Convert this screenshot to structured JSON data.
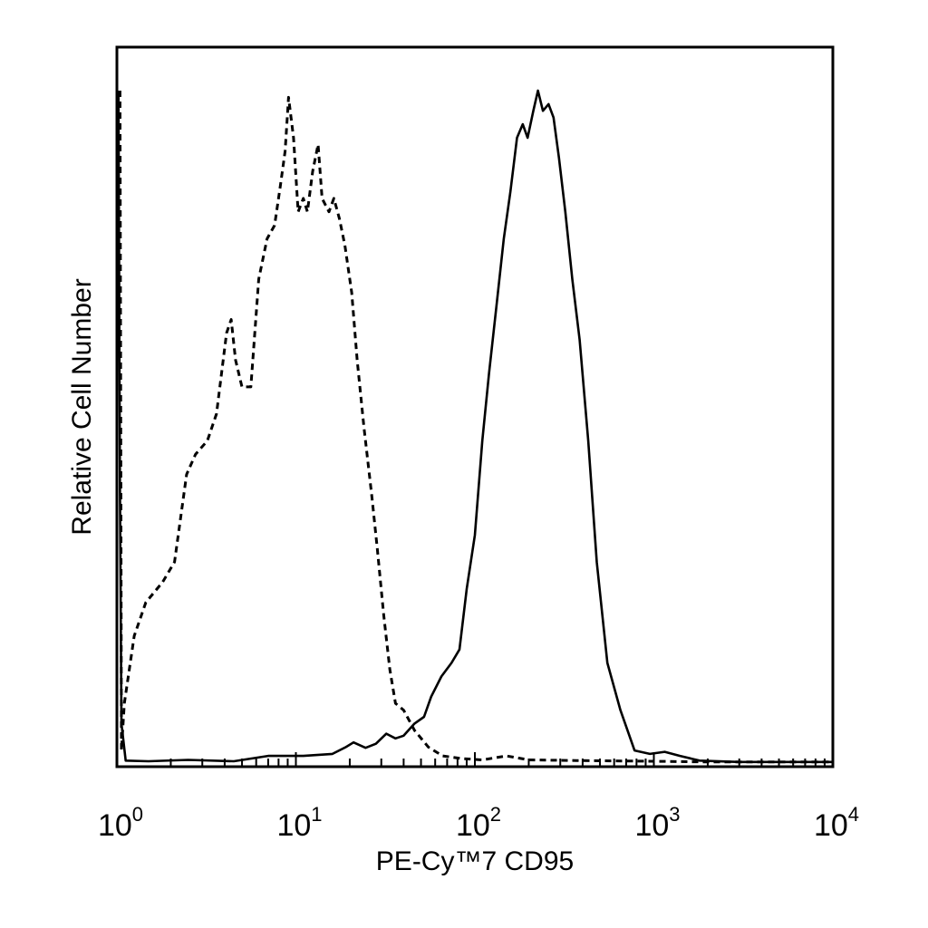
{
  "chart_data": {
    "type": "line",
    "title": "",
    "xlabel": "PE-Cy™7 CD95",
    "ylabel": "Relative Cell Number",
    "x_scale": "log",
    "xlim": [
      1,
      10000
    ],
    "ylim": [
      0,
      1
    ],
    "grid": false,
    "legend": "none",
    "x_ticks": [
      {
        "value": 1,
        "base": "10",
        "exp": "0"
      },
      {
        "value": 10,
        "base": "10",
        "exp": "1"
      },
      {
        "value": 100,
        "base": "10",
        "exp": "2"
      },
      {
        "value": 1000,
        "base": "10",
        "exp": "3"
      },
      {
        "value": 10000,
        "base": "10",
        "exp": "4"
      }
    ],
    "series": [
      {
        "style": "dashed",
        "color": "#000000",
        "points": [
          [
            1.04,
            1.0
          ],
          [
            1.05,
            0.55
          ],
          [
            1.06,
            0.02
          ],
          [
            1.1,
            0.09
          ],
          [
            1.25,
            0.19
          ],
          [
            1.45,
            0.24
          ],
          [
            1.8,
            0.27
          ],
          [
            2.1,
            0.3
          ],
          [
            2.45,
            0.43
          ],
          [
            2.75,
            0.46
          ],
          [
            3.2,
            0.48
          ],
          [
            3.6,
            0.52
          ],
          [
            4.1,
            0.64
          ],
          [
            4.35,
            0.66
          ],
          [
            4.6,
            0.6
          ],
          [
            5.0,
            0.56
          ],
          [
            5.6,
            0.56
          ],
          [
            6.2,
            0.72
          ],
          [
            6.9,
            0.78
          ],
          [
            7.6,
            0.8
          ],
          [
            8.2,
            0.86
          ],
          [
            8.7,
            0.91
          ],
          [
            9.1,
            0.99
          ],
          [
            9.7,
            0.93
          ],
          [
            10.3,
            0.82
          ],
          [
            11.0,
            0.84
          ],
          [
            11.6,
            0.82
          ],
          [
            12.4,
            0.88
          ],
          [
            13.3,
            0.92
          ],
          [
            14.0,
            0.84
          ],
          [
            15.3,
            0.82
          ],
          [
            16.3,
            0.84
          ],
          [
            17.5,
            0.81
          ],
          [
            18.8,
            0.77
          ],
          [
            20.5,
            0.7
          ],
          [
            22.0,
            0.6
          ],
          [
            24.0,
            0.5
          ],
          [
            26.5,
            0.4
          ],
          [
            28.5,
            0.32
          ],
          [
            31.0,
            0.22
          ],
          [
            33.5,
            0.14
          ],
          [
            36.0,
            0.09
          ],
          [
            40.0,
            0.08
          ],
          [
            46.0,
            0.05
          ],
          [
            55.0,
            0.025
          ],
          [
            66.0,
            0.012
          ],
          [
            85.0,
            0.008
          ],
          [
            110.0,
            0.006
          ],
          [
            150.0,
            0.012
          ],
          [
            200.0,
            0.006
          ],
          [
            400.0,
            0.005
          ],
          [
            1000.0,
            0.004
          ],
          [
            2000.0,
            0.003
          ],
          [
            5000.0,
            0.003
          ],
          [
            10000.0,
            0.003
          ]
        ]
      },
      {
        "style": "solid",
        "color": "#000000",
        "points": [
          [
            1.02,
            1.0
          ],
          [
            1.04,
            0.4
          ],
          [
            1.06,
            0.06
          ],
          [
            1.12,
            0.005
          ],
          [
            1.5,
            0.004
          ],
          [
            2.5,
            0.006
          ],
          [
            4.5,
            0.004
          ],
          [
            7.0,
            0.012
          ],
          [
            11.0,
            0.012
          ],
          [
            16.0,
            0.015
          ],
          [
            19.0,
            0.025
          ],
          [
            21.0,
            0.032
          ],
          [
            24.5,
            0.024
          ],
          [
            28.0,
            0.03
          ],
          [
            32.0,
            0.045
          ],
          [
            36.0,
            0.038
          ],
          [
            40.0,
            0.042
          ],
          [
            46.0,
            0.06
          ],
          [
            52.0,
            0.07
          ],
          [
            57.0,
            0.1
          ],
          [
            65.0,
            0.13
          ],
          [
            74.0,
            0.15
          ],
          [
            82.0,
            0.17
          ],
          [
            90.0,
            0.26
          ],
          [
            100.0,
            0.34
          ],
          [
            110.0,
            0.48
          ],
          [
            120.0,
            0.58
          ],
          [
            132.0,
            0.68
          ],
          [
            145.0,
            0.78
          ],
          [
            158.0,
            0.85
          ],
          [
            172.0,
            0.93
          ],
          [
            185.0,
            0.95
          ],
          [
            197.0,
            0.93
          ],
          [
            212.0,
            0.97
          ],
          [
            225.0,
            1.0
          ],
          [
            240.0,
            0.97
          ],
          [
            258.0,
            0.98
          ],
          [
            275.0,
            0.96
          ],
          [
            295.0,
            0.9
          ],
          [
            320.0,
            0.82
          ],
          [
            350.0,
            0.72
          ],
          [
            385.0,
            0.63
          ],
          [
            430.0,
            0.48
          ],
          [
            480.0,
            0.3
          ],
          [
            550.0,
            0.15
          ],
          [
            650.0,
            0.08
          ],
          [
            780.0,
            0.02
          ],
          [
            950.0,
            0.015
          ],
          [
            1150.0,
            0.018
          ],
          [
            1400.0,
            0.012
          ],
          [
            1800.0,
            0.005
          ],
          [
            3000.0,
            0.003
          ],
          [
            10000.0,
            0.003
          ]
        ]
      }
    ]
  }
}
